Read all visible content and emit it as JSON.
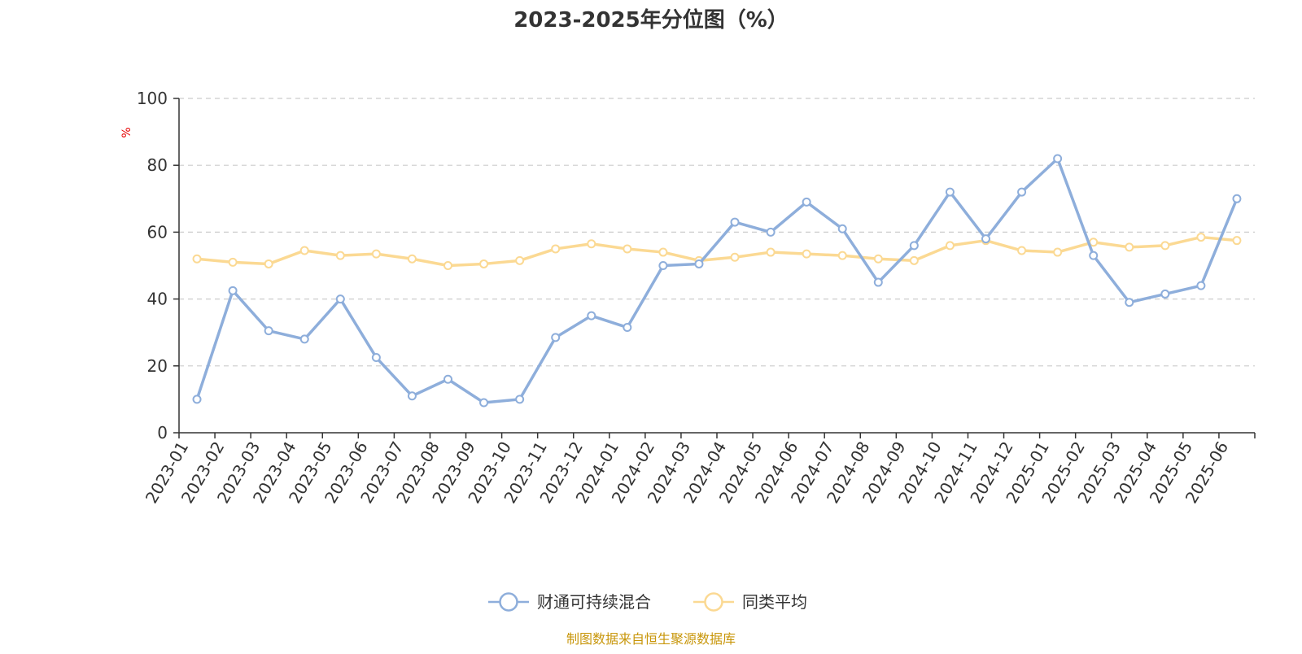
{
  "colors": {
    "series_fund": "#8eaedb",
    "series_avg": "#fbd993",
    "axis": "#333333",
    "grid": "#cccccc",
    "unit": "#e60000",
    "source": "#c8960a"
  },
  "chart_data": {
    "type": "line",
    "title": "2023-2025年分位图（%）",
    "y_unit": "%",
    "xlabel": "",
    "ylabel": "",
    "ylim": [
      0,
      100
    ],
    "y_ticks": [
      0,
      20,
      40,
      60,
      80,
      100
    ],
    "grid": true,
    "legend_position": "bottom-center",
    "categories": [
      "2023-01",
      "2023-02",
      "2023-03",
      "2023-04",
      "2023-05",
      "2023-06",
      "2023-07",
      "2023-08",
      "2023-09",
      "2023-10",
      "2023-11",
      "2023-12",
      "2024-01",
      "2024-02",
      "2024-03",
      "2024-04",
      "2024-05",
      "2024-06",
      "2024-07",
      "2024-08",
      "2024-09",
      "2024-10",
      "2024-11",
      "2024-12",
      "2025-01",
      "2025-02",
      "2025-03",
      "2025-04",
      "2025-05",
      "2025-06"
    ],
    "series": [
      {
        "name": "财通可持续混合",
        "color_key": "series_fund",
        "values": [
          10,
          42.5,
          30.5,
          28,
          40,
          22.5,
          11,
          16,
          9,
          10,
          28.5,
          35,
          31.5,
          50,
          50.5,
          63,
          60,
          69,
          61,
          45,
          56,
          72,
          58,
          72,
          82,
          53,
          39,
          41.5,
          44,
          70
        ]
      },
      {
        "name": "同类平均",
        "color_key": "series_avg",
        "values": [
          52,
          51,
          50.5,
          54.5,
          53,
          53.5,
          52,
          50,
          50.5,
          51.5,
          55,
          56.5,
          55,
          54,
          51.5,
          52.5,
          54,
          53.5,
          53,
          52,
          51.5,
          56,
          57.5,
          54.5,
          54,
          57,
          55.5,
          56,
          58.5,
          57.5
        ]
      }
    ]
  },
  "source": "制图数据来自恒生聚源数据库"
}
